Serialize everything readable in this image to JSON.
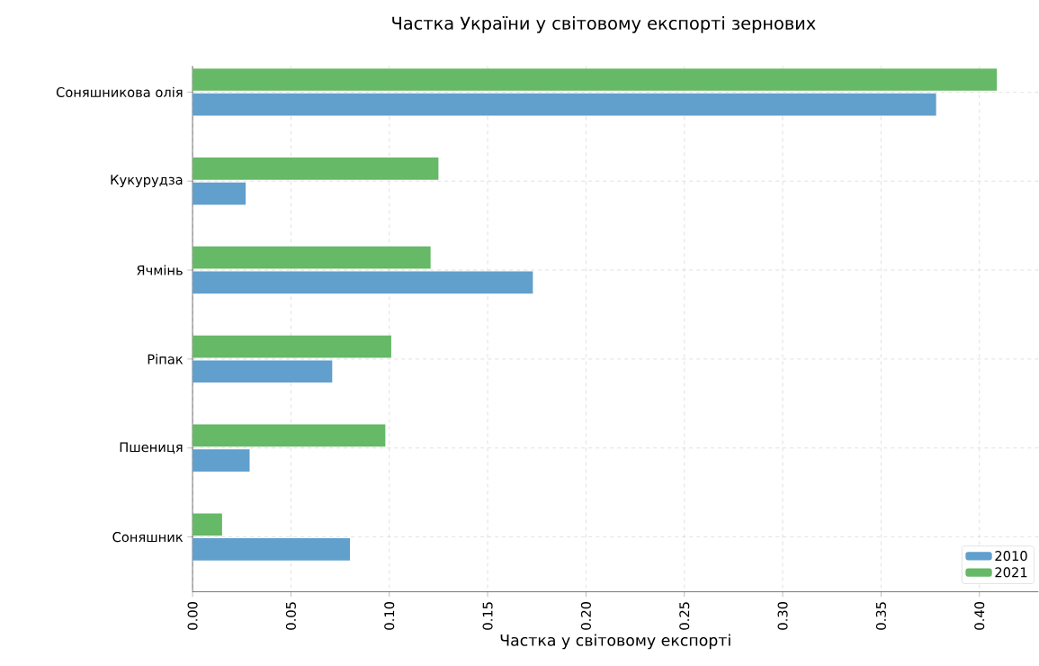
{
  "chart_data": {
    "type": "bar",
    "orientation": "horizontal",
    "title": "Частка України у світовому експорті зернових",
    "xlabel": "Частка у світовому експорті",
    "categories": [
      "Соняшникова олія",
      "Кукурудза",
      "Ячмінь",
      "Ріпак",
      "Пшениця",
      "Соняшник"
    ],
    "series": [
      {
        "name": "2010",
        "color": "#619fcd",
        "values": [
          0.378,
          0.027,
          0.173,
          0.071,
          0.029,
          0.08
        ]
      },
      {
        "name": "2021",
        "color": "#66b966",
        "values": [
          0.409,
          0.125,
          0.121,
          0.101,
          0.098,
          0.015
        ]
      }
    ],
    "xlim": [
      0,
      0.43
    ],
    "xticks": [
      {
        "value": 0,
        "label": "0.00"
      },
      {
        "value": 0.05,
        "label": "0.05"
      },
      {
        "value": 0.1,
        "label": "0.10"
      },
      {
        "value": 0.15,
        "label": "0.15"
      },
      {
        "value": 0.2,
        "label": "0.20"
      },
      {
        "value": 0.25,
        "label": "0.25"
      },
      {
        "value": 0.3,
        "label": "0.30"
      },
      {
        "value": 0.35,
        "label": "0.35"
      },
      {
        "value": 0.4,
        "label": "0.40"
      }
    ],
    "grid": true,
    "legend": "bottom right"
  }
}
